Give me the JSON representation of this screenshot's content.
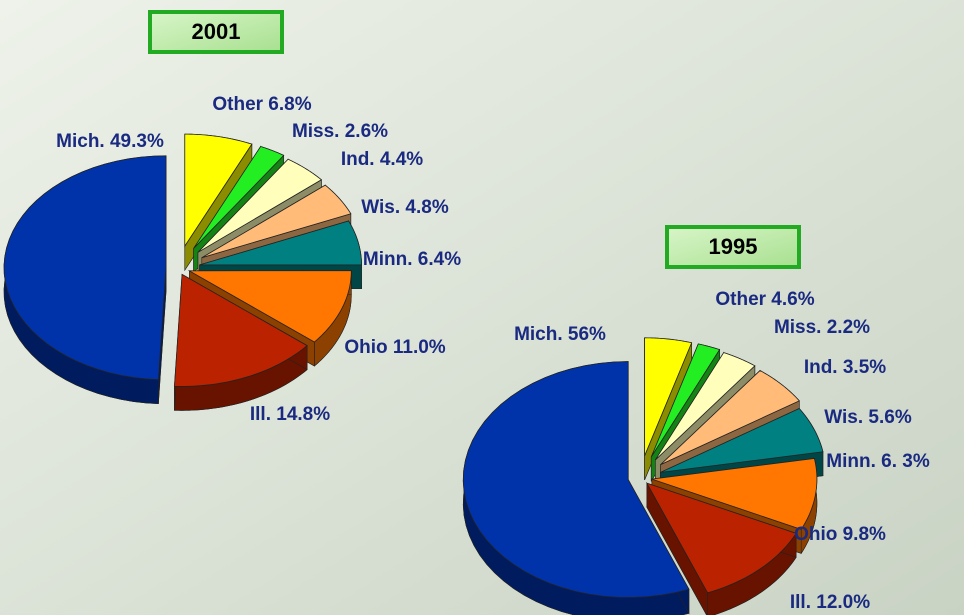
{
  "chart_data": [
    {
      "type": "pie",
      "title": "2001",
      "values": [
        6.8,
        2.6,
        4.4,
        4.8,
        6.4,
        11.0,
        14.8,
        49.3
      ],
      "value_labels": [
        "Other 6.8%",
        "Miss. 2.6%",
        "Ind. 4.4%",
        "Wis. 4.8%",
        "Minn. 6.4%",
        "Ohio 11.0%",
        "Ill. 14.8%",
        "Mich. 49.3%"
      ],
      "colors": [
        "#ffff00",
        "#22ee22",
        "#ffffbb",
        "#ffbb77",
        "#008080",
        "#ff7700",
        "#bb2200",
        "#0033aa"
      ]
    },
    {
      "type": "pie",
      "title": "1995",
      "values": [
        4.6,
        2.2,
        3.5,
        5.6,
        6.3,
        9.8,
        12.0,
        56
      ],
      "value_labels": [
        "Other 4.6%",
        "Miss. 2.2%",
        "Ind. 3.5%",
        "Wis. 5.6%",
        "Minn. 6. 3%",
        "Ohio 9.8%",
        "Ill. 12.0%",
        "Mich. 56%"
      ],
      "colors": [
        "#ffff00",
        "#22ee22",
        "#ffffbb",
        "#ffbb77",
        "#008080",
        "#ff7700",
        "#bb2200",
        "#0033aa"
      ]
    }
  ]
}
